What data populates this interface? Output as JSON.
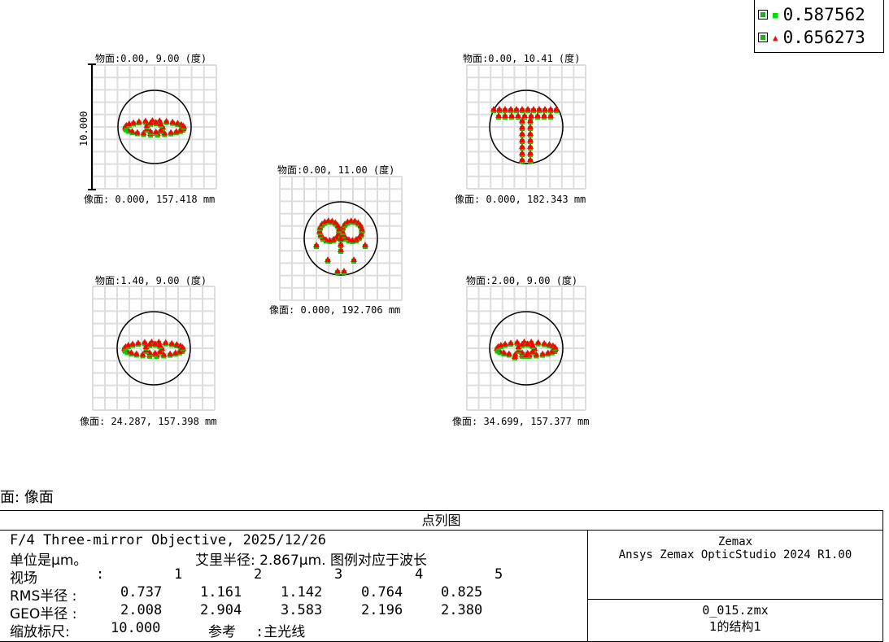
{
  "legend": [
    {
      "value": "0.587562",
      "color": "#00e000",
      "marker": "square"
    },
    {
      "value": "0.656273",
      "color": "#ff0000",
      "marker": "triangle"
    }
  ],
  "plots": [
    {
      "top_label": "物面:0.00, 9.00 (度)",
      "bottom_label": "像面: 0.000, 157.418 mm",
      "scale_label": "10.000",
      "shape": "ring"
    },
    {
      "top_label": "物面:0.00, 10.41 (度)",
      "bottom_label": "像面: 0.000, 182.343 mm",
      "shape": "tee"
    },
    {
      "top_label": "物面:0.00, 11.00 (度)",
      "bottom_label": "像面: 0.000, 192.706 mm",
      "shape": "heart"
    },
    {
      "top_label": "物面:1.40, 9.00 (度)",
      "bottom_label": "像面: 24.287, 157.398 mm",
      "shape": "ring"
    },
    {
      "top_label": "物面:2.00, 9.00 (度)",
      "bottom_label": "像面: 34.699, 157.377 mm",
      "shape": "ring2"
    }
  ],
  "surface_label": "面: 像面",
  "info": {
    "title": "点列图",
    "line1": "F/4 Three-mirror Objective, 2025/12/26",
    "units": "单位是µm。",
    "airy": "艾里半径: 2.867µm. 图例对应于波长",
    "field_label": "视场",
    "field_colon": ":",
    "fields": [
      "1",
      "2",
      "3",
      "4",
      "5"
    ],
    "rms_label": "RMS半径 :",
    "rms": [
      "0.737",
      "1.161",
      "1.142",
      "0.764",
      "0.825"
    ],
    "geo_label": "GEO半径 :",
    "geo": [
      "2.008",
      "2.904",
      "3.583",
      "2.196",
      "2.380"
    ],
    "scale_label": "缩放标尺:",
    "scale_value": "10.000",
    "ref_label": "参考",
    "ref_value": ":主光线",
    "company": "Zemax",
    "product": "Ansys Zemax OpticStudio 2024 R1.00",
    "file": "0_015.zmx",
    "config": "1的结构1"
  }
}
